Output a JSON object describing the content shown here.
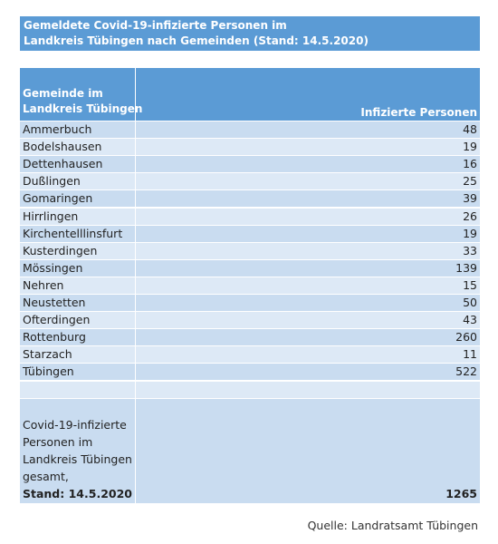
{
  "header": {
    "title_lines": [
      "Gemeldete Covid-19-infizierte Personen im",
      "Landkreis Tübingen nach Gemeinden (Stand: 14.5.2020)"
    ]
  },
  "table": {
    "columns": [
      [
        "Gemeinde im",
        "Landkreis Tübingen"
      ],
      "Infizierte Personen"
    ],
    "rows": [
      [
        "Ammerbuch",
        48
      ],
      [
        "Bodelshausen",
        19
      ],
      [
        "Dettenhausen",
        16
      ],
      [
        "Dußlingen",
        25
      ],
      [
        "Gomaringen",
        39
      ],
      [
        "Hirrlingen",
        26
      ],
      [
        "Kirchentelllinsfurt",
        19
      ],
      [
        "Kusterdingen",
        33
      ],
      [
        "Mössingen",
        139
      ],
      [
        "Nehren",
        15
      ],
      [
        "Neustetten",
        50
      ],
      [
        "Ofterdingen",
        43
      ],
      [
        "Rottenburg",
        260
      ],
      [
        "Starzach",
        11
      ],
      [
        "Tübingen",
        522
      ]
    ],
    "total": {
      "label_lines": [
        "Covid-19-infizierte",
        "Personen im",
        "Landkreis Tübingen",
        "gesamt,"
      ],
      "stand": "Stand: 14.5.2020",
      "value": 1265
    }
  },
  "source": "Quelle: Landratsamt Tübingen"
}
